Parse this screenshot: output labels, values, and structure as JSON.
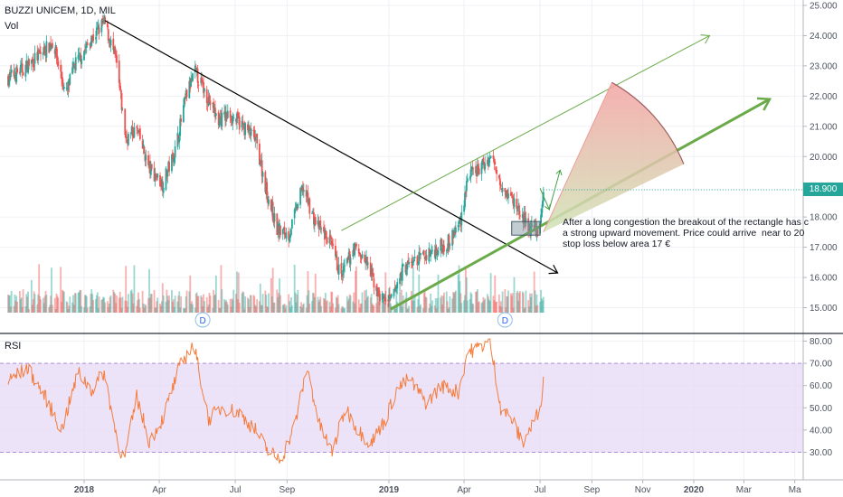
{
  "header": {
    "symbol": "BUZZI UNICEM, 1D, MIL",
    "volume_label": "Vol",
    "rsi_label": "RSI"
  },
  "annotation": {
    "text": "After a long congestion the breakout of the rectangle has c\na strong upward movement. Price could arrive  near to 20\nstop loss below area 17 €"
  },
  "dividend_marker": "D",
  "last_price": "18.900",
  "colors": {
    "up": "#26a69a",
    "down": "#ef5350",
    "rsi_line": "#f57c3c",
    "rsi_band": "#e6d7f7",
    "trend_black": "#000000",
    "channel_green": "#6aaa48",
    "fan_red": "#ef9a9a"
  },
  "chart_data": [
    {
      "type": "candlestick",
      "title": "BUZZI UNICEM, 1D, MIL",
      "x_ticks": [
        "2018",
        "Apr",
        "Jul",
        "Sep",
        "2019",
        "Apr",
        "Jul",
        "Sep",
        "Nov",
        "2020",
        "Mar",
        "Ma"
      ],
      "y_ticks": [
        "25.000",
        "24.000",
        "23.000",
        "22.000",
        "21.000",
        "20.000",
        "18.900",
        "18.000",
        "17.000",
        "16.000",
        "15.000"
      ],
      "ylim": [
        14.7,
        25.1
      ],
      "last_value": 18.9,
      "close_path": [
        [
          "2017-10-02",
          22.6
        ],
        [
          "2017-10-20",
          22.9
        ],
        [
          "2017-11-10",
          23.4
        ],
        [
          "2017-11-25",
          23.8
        ],
        [
          "2017-12-10",
          22.0
        ],
        [
          "2017-12-20",
          23.0
        ],
        [
          "2018-01-08",
          23.8
        ],
        [
          "2018-01-25",
          24.45
        ],
        [
          "2018-02-08",
          23.2
        ],
        [
          "2018-02-20",
          20.6
        ],
        [
          "2018-03-05",
          20.9
        ],
        [
          "2018-03-20",
          19.6
        ],
        [
          "2018-04-05",
          19.1
        ],
        [
          "2018-04-20",
          20.2
        ],
        [
          "2018-05-03",
          22.0
        ],
        [
          "2018-05-14",
          22.8
        ],
        [
          "2018-05-30",
          21.9
        ],
        [
          "2018-06-10",
          21.2
        ],
        [
          "2018-06-25",
          21.4
        ],
        [
          "2018-07-10",
          21.0
        ],
        [
          "2018-07-25",
          20.6
        ],
        [
          "2018-08-08",
          18.8
        ],
        [
          "2018-08-20",
          17.6
        ],
        [
          "2018-09-03",
          17.4
        ],
        [
          "2018-09-20",
          19.0
        ],
        [
          "2018-10-05",
          17.8
        ],
        [
          "2018-10-22",
          17.2
        ],
        [
          "2018-11-05",
          16.0
        ],
        [
          "2018-11-20",
          17.0
        ],
        [
          "2018-12-05",
          16.5
        ],
        [
          "2018-12-20",
          15.4
        ],
        [
          "2019-01-03",
          15.2
        ],
        [
          "2019-01-18",
          16.3
        ],
        [
          "2019-02-05",
          16.6
        ],
        [
          "2019-02-25",
          16.9
        ],
        [
          "2019-03-15",
          17.2
        ],
        [
          "2019-03-28",
          17.9
        ],
        [
          "2019-04-05",
          19.3
        ],
        [
          "2019-04-20",
          19.6
        ],
        [
          "2019-05-03",
          20.0
        ],
        [
          "2019-05-18",
          19.0
        ],
        [
          "2019-06-02",
          18.4
        ],
        [
          "2019-06-18",
          17.6
        ],
        [
          "2019-07-01",
          17.6
        ],
        [
          "2019-07-05",
          18.9
        ]
      ],
      "volume_label": "Vol",
      "annotations": [
        {
          "kind": "trendline",
          "color": "black",
          "from": [
            "2018-01-26",
            24.5
          ],
          "to": [
            "2019-07-22",
            16.15
          ]
        },
        {
          "kind": "trendline",
          "color": "green",
          "from": [
            "2018-11-05",
            17.55
          ],
          "to": [
            "2020-01-20",
            24.0
          ]
        },
        {
          "kind": "trendline",
          "color": "green",
          "from": [
            "2019-01-03",
            14.95
          ],
          "to": [
            "2020-04-01",
            21.9
          ]
        },
        {
          "kind": "rectangle",
          "from": [
            "2019-05-28",
            17.85
          ],
          "to": [
            "2019-07-01",
            17.4
          ]
        },
        {
          "kind": "dividend",
          "dates": [
            "2018-05-23",
            "2019-05-20"
          ]
        }
      ]
    },
    {
      "type": "line",
      "title": "RSI",
      "y_ticks": [
        30,
        40,
        50,
        60,
        70,
        80
      ],
      "ylim": [
        25,
        82
      ],
      "band": [
        30,
        70
      ],
      "series": [
        {
          "values": [
            [
              "2017-10-02",
              62
            ],
            [
              "2017-10-25",
              68
            ],
            [
              "2017-11-15",
              55
            ],
            [
              "2017-12-05",
              40
            ],
            [
              "2017-12-25",
              66
            ],
            [
              "2018-01-10",
              58
            ],
            [
              "2018-01-25",
              66
            ],
            [
              "2018-02-10",
              35
            ],
            [
              "2018-02-18",
              26
            ],
            [
              "2018-03-05",
              55
            ],
            [
              "2018-03-20",
              35
            ],
            [
              "2018-04-05",
              45
            ],
            [
              "2018-04-25",
              68
            ],
            [
              "2018-05-12",
              79
            ],
            [
              "2018-05-30",
              45
            ],
            [
              "2018-06-15",
              50
            ],
            [
              "2018-07-05",
              48
            ],
            [
              "2018-07-25",
              40
            ],
            [
              "2018-08-10",
              30
            ],
            [
              "2018-08-25",
              27
            ],
            [
              "2018-09-10",
              42
            ],
            [
              "2018-09-25",
              68
            ],
            [
              "2018-10-10",
              42
            ],
            [
              "2018-10-25",
              30
            ],
            [
              "2018-11-10",
              50
            ],
            [
              "2018-11-25",
              40
            ],
            [
              "2018-12-10",
              34
            ],
            [
              "2018-12-28",
              45
            ],
            [
              "2019-01-10",
              58
            ],
            [
              "2019-01-25",
              63
            ],
            [
              "2019-02-15",
              52
            ],
            [
              "2019-03-05",
              60
            ],
            [
              "2019-03-25",
              57
            ],
            [
              "2019-04-05",
              75
            ],
            [
              "2019-04-18",
              77
            ],
            [
              "2019-05-02",
              80
            ],
            [
              "2019-05-15",
              50
            ],
            [
              "2019-05-28",
              45
            ],
            [
              "2019-06-10",
              34
            ],
            [
              "2019-06-25",
              45
            ],
            [
              "2019-07-01",
              49
            ],
            [
              "2019-07-05",
              64
            ]
          ]
        }
      ]
    }
  ]
}
